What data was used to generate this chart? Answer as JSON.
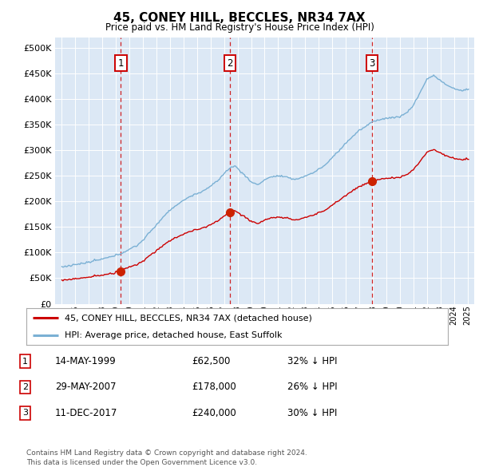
{
  "title": "45, CONEY HILL, BECCLES, NR34 7AX",
  "subtitle": "Price paid vs. HM Land Registry's House Price Index (HPI)",
  "background_color": "#ffffff",
  "plot_bg_color": "#dce8f5",
  "grid_color": "#ffffff",
  "hpi_color": "#7ab0d4",
  "price_color": "#cc0000",
  "transactions": [
    {
      "date": 1999.37,
      "price": 62500,
      "label": "1"
    },
    {
      "date": 2007.41,
      "price": 178000,
      "label": "2"
    },
    {
      "date": 2017.94,
      "price": 240000,
      "label": "3"
    }
  ],
  "vline_color": "#cc0000",
  "marker_color": "#cc2200",
  "table_rows": [
    [
      "1",
      "14-MAY-1999",
      "£62,500",
      "32% ↓ HPI"
    ],
    [
      "2",
      "29-MAY-2007",
      "£178,000",
      "26% ↓ HPI"
    ],
    [
      "3",
      "11-DEC-2017",
      "£240,000",
      "30% ↓ HPI"
    ]
  ],
  "legend_label_red": "45, CONEY HILL, BECCLES, NR34 7AX (detached house)",
  "legend_label_blue": "HPI: Average price, detached house, East Suffolk",
  "footer": "Contains HM Land Registry data © Crown copyright and database right 2024.\nThis data is licensed under the Open Government Licence v3.0.",
  "ylim": [
    0,
    520000
  ],
  "yticks": [
    0,
    50000,
    100000,
    150000,
    200000,
    250000,
    300000,
    350000,
    400000,
    450000,
    500000
  ],
  "xmin": 1994.5,
  "xmax": 2025.5
}
